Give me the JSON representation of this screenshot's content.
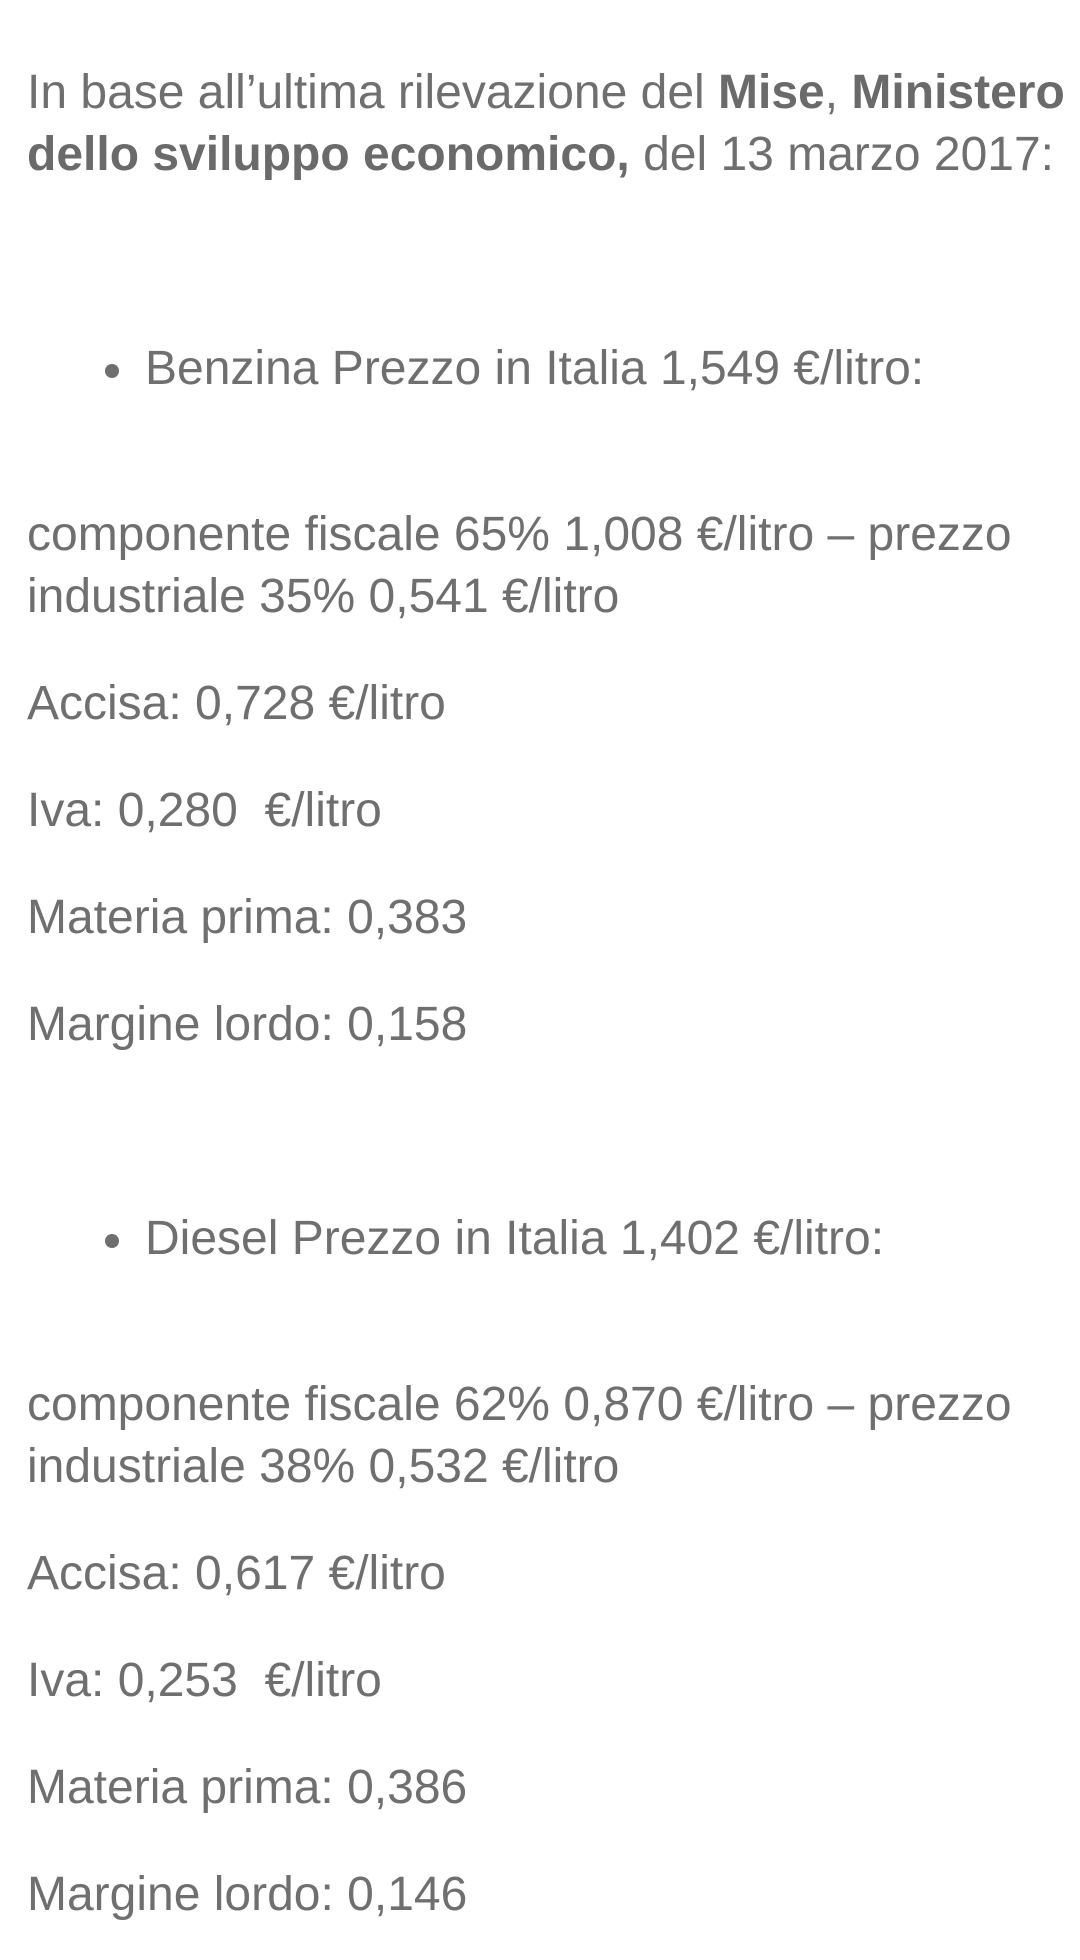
{
  "page": {
    "background_color": "#ffffff",
    "text_color": "#6f6f6f",
    "bold_text_color": "#6a6a6a"
  },
  "document": {
    "blocks": [
      {
        "name": "intro-paragraph",
        "type": "paragraph",
        "lines": [
          [
            {
              "text": "In base all’ultima rilevazione del ",
              "bold": false
            },
            {
              "text": "Mise",
              "bold": true
            },
            {
              "text": ", ",
              "bold": false
            },
            {
              "text": "Ministero",
              "bold": true
            }
          ],
          [
            {
              "text": "dello sviluppo economico,",
              "bold": true
            },
            {
              "text": " del 13 marzo 2017:",
              "bold": false
            }
          ]
        ]
      },
      {
        "name": "benzina-price-bullet",
        "type": "bullet",
        "lines": [
          [
            {
              "text": "Benzina Prezzo in Italia 1,549 €/litro:",
              "bold": false
            }
          ]
        ]
      },
      {
        "name": "benzina-fiscal-split-paragraph",
        "type": "paragraph",
        "lines": [
          [
            {
              "text": "componente fiscale 65% 1,008 €/litro – prezzo",
              "bold": false
            }
          ],
          [
            {
              "text": "industriale 35% 0,541 €/litro",
              "bold": false
            }
          ]
        ]
      },
      {
        "name": "benzina-accisa-paragraph",
        "type": "paragraph",
        "lines": [
          [
            {
              "text": "Accisa: 0,728 €/litro",
              "bold": false
            }
          ]
        ]
      },
      {
        "name": "benzina-iva-paragraph",
        "type": "paragraph",
        "lines": [
          [
            {
              "text": "Iva: 0,280  €/litro",
              "bold": false
            }
          ]
        ]
      },
      {
        "name": "benzina-materia-prima-paragraph",
        "type": "paragraph",
        "lines": [
          [
            {
              "text": "Materia prima: 0,383",
              "bold": false
            }
          ]
        ]
      },
      {
        "name": "benzina-margine-lordo-paragraph",
        "type": "paragraph",
        "lines": [
          [
            {
              "text": "Margine lordo: 0,158",
              "bold": false
            }
          ]
        ]
      },
      {
        "name": "diesel-price-bullet",
        "type": "bullet",
        "lines": [
          [
            {
              "text": "Diesel Prezzo in Italia 1,402 €/litro:",
              "bold": false
            }
          ]
        ]
      },
      {
        "name": "diesel-fiscal-split-paragraph",
        "type": "paragraph",
        "lines": [
          [
            {
              "text": "componente fiscale 62% 0,870 €/litro – prezzo",
              "bold": false
            }
          ],
          [
            {
              "text": "industriale 38% 0,532 €/litro",
              "bold": false
            }
          ]
        ]
      },
      {
        "name": "diesel-accisa-paragraph",
        "type": "paragraph",
        "lines": [
          [
            {
              "text": "Accisa: 0,617 €/litro",
              "bold": false
            }
          ]
        ]
      },
      {
        "name": "diesel-iva-paragraph",
        "type": "paragraph",
        "lines": [
          [
            {
              "text": "Iva: 0,253  €/litro",
              "bold": false
            }
          ]
        ]
      },
      {
        "name": "diesel-materia-prima-paragraph",
        "type": "paragraph",
        "lines": [
          [
            {
              "text": "Materia prima: 0,386",
              "bold": false
            }
          ]
        ]
      },
      {
        "name": "diesel-margine-lordo-paragraph",
        "type": "paragraph",
        "lines": [
          [
            {
              "text": "Margine lordo: 0,146",
              "bold": false
            }
          ]
        ]
      }
    ]
  }
}
